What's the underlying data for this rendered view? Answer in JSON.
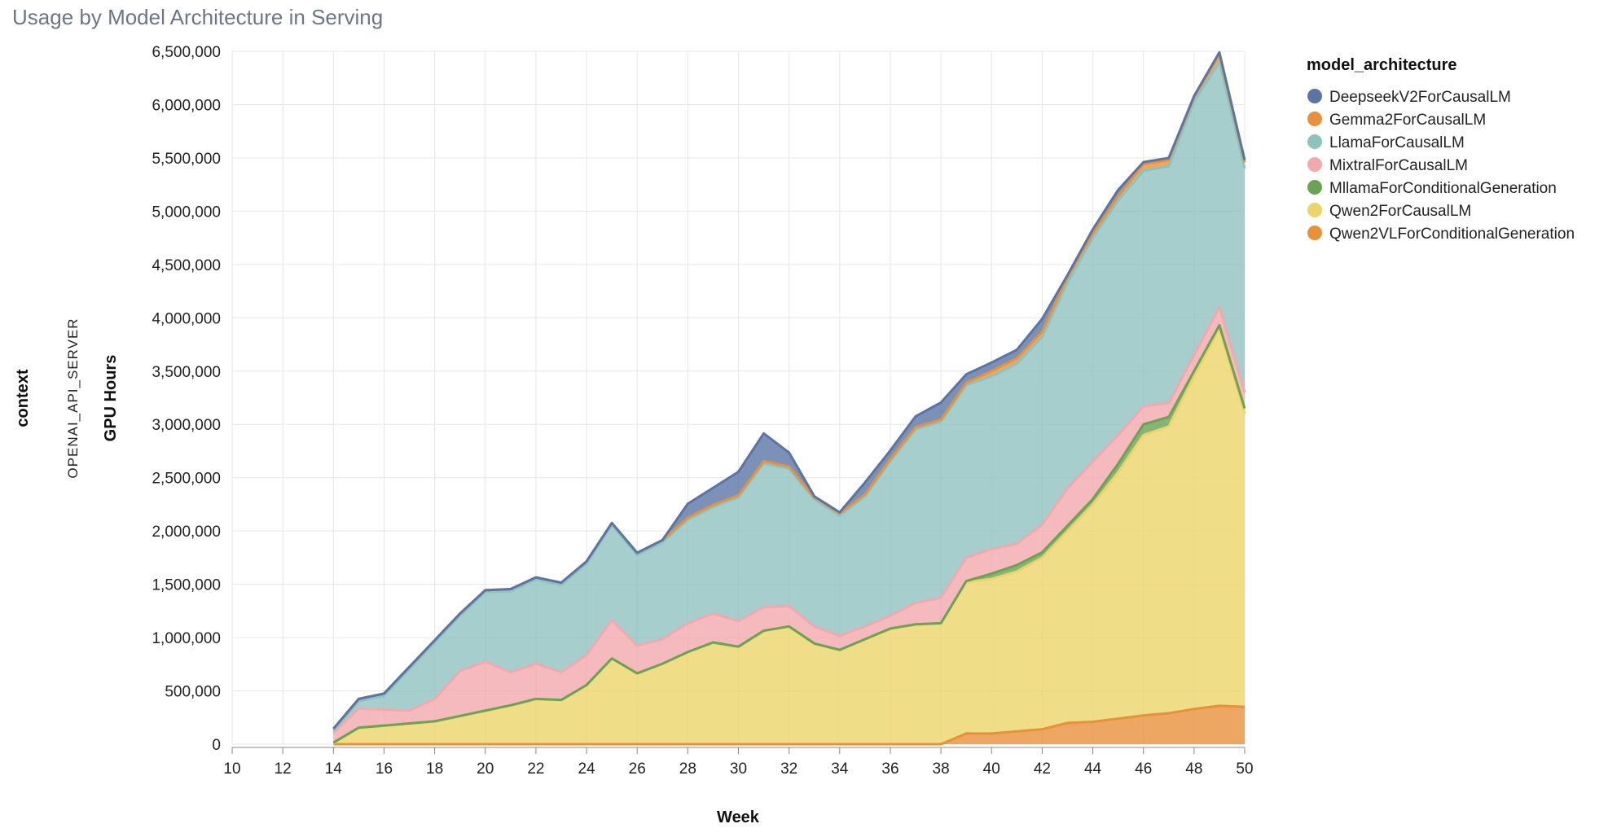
{
  "title": "Usage by Model Architecture in Serving",
  "chart_data": {
    "type": "area",
    "stacked": true,
    "title": "Usage by Model Architecture in Serving",
    "xlabel": "Week",
    "ylabel": "GPU Hours",
    "facet_label": "context",
    "facet_value": "OPENAI_API_SERVER",
    "xlim": [
      10,
      50
    ],
    "ylim": [
      0,
      6500000
    ],
    "x_ticks": [
      10,
      12,
      14,
      16,
      18,
      20,
      22,
      24,
      26,
      28,
      30,
      32,
      34,
      36,
      38,
      40,
      42,
      44,
      46,
      48,
      50
    ],
    "y_ticks": [
      0,
      500000,
      1000000,
      1500000,
      2000000,
      2500000,
      3000000,
      3500000,
      4000000,
      4500000,
      5000000,
      5500000,
      6000000,
      6500000
    ],
    "y_tick_labels": [
      "0",
      "500,000",
      "1,000,000",
      "1,500,000",
      "2,000,000",
      "2,500,000",
      "3,000,000",
      "3,500,000",
      "4,000,000",
      "4,500,000",
      "5,000,000",
      "5,500,000",
      "6,000,000",
      "6,500,000"
    ],
    "grid": true,
    "legend_title": "model_architecture",
    "legend_position": "right",
    "x": [
      14,
      15,
      16,
      17,
      18,
      19,
      20,
      21,
      22,
      23,
      24,
      25,
      26,
      27,
      28,
      29,
      30,
      31,
      32,
      33,
      34,
      35,
      36,
      37,
      38,
      39,
      40,
      41,
      42,
      43,
      44,
      45,
      46,
      47,
      48,
      49,
      50
    ],
    "series": [
      {
        "name": "DeepseekV2ForCausalLM",
        "color": "#5a75a5",
        "values": [
          0,
          0,
          0,
          0,
          0,
          0,
          0,
          0,
          0,
          0,
          0,
          0,
          0,
          0,
          130000,
          160000,
          220000,
          260000,
          130000,
          10000,
          10000,
          110000,
          80000,
          100000,
          160000,
          80000,
          80000,
          80000,
          120000,
          20000,
          40000,
          60000,
          20000,
          20000,
          10000,
          20000,
          20000
        ]
      },
      {
        "name": "Gemma2ForCausalLM",
        "color": "#e8913b",
        "values": [
          20000,
          20000,
          20000,
          20000,
          20000,
          20000,
          20000,
          20000,
          20000,
          20000,
          20000,
          20000,
          20000,
          20000,
          20000,
          20000,
          20000,
          20000,
          20000,
          20000,
          20000,
          20000,
          20000,
          20000,
          20000,
          20000,
          50000,
          50000,
          50000,
          50000,
          40000,
          40000,
          60000,
          60000,
          40000,
          70000,
          60000
        ]
      },
      {
        "name": "LlamaForCausalLM",
        "color": "#8ec2bf",
        "values": [
          20000,
          70000,
          130000,
          390000,
          530000,
          520000,
          650000,
          760000,
          790000,
          820000,
          860000,
          890000,
          850000,
          910000,
          970000,
          1000000,
          1160000,
          1350000,
          1290000,
          1190000,
          1130000,
          1220000,
          1450000,
          1630000,
          1650000,
          1620000,
          1620000,
          1690000,
          1760000,
          1930000,
          2100000,
          2200000,
          2210000,
          2220000,
          2380000,
          2300000,
          2100000
        ]
      },
      {
        "name": "MixtralForCausalLM",
        "color": "#f2a9ae",
        "values": [
          90000,
          180000,
          150000,
          120000,
          210000,
          420000,
          460000,
          310000,
          330000,
          260000,
          280000,
          360000,
          260000,
          230000,
          270000,
          270000,
          240000,
          220000,
          190000,
          160000,
          130000,
          120000,
          120000,
          200000,
          240000,
          220000,
          230000,
          200000,
          260000,
          350000,
          350000,
          270000,
          170000,
          130000,
          150000,
          170000,
          150000
        ]
      },
      {
        "name": "MllamaForConditionalGeneration",
        "color": "#6aa352",
        "values": [
          5000,
          5000,
          5000,
          5000,
          5000,
          5000,
          5000,
          5000,
          5000,
          5000,
          5000,
          5000,
          5000,
          5000,
          5000,
          5000,
          5000,
          5000,
          5000,
          5000,
          5000,
          5000,
          5000,
          5000,
          5000,
          10000,
          50000,
          60000,
          50000,
          50000,
          50000,
          80000,
          100000,
          90000,
          50000,
          30000,
          50000
        ]
      },
      {
        "name": "Qwen2ForCausalLM",
        "color": "#ecd46a",
        "values": [
          10000,
          150000,
          170000,
          190000,
          210000,
          260000,
          310000,
          360000,
          420000,
          410000,
          550000,
          800000,
          660000,
          750000,
          860000,
          950000,
          910000,
          1060000,
          1100000,
          940000,
          880000,
          980000,
          1080000,
          1120000,
          1130000,
          1420000,
          1450000,
          1500000,
          1610000,
          1800000,
          2040000,
          2310000,
          2630000,
          2690000,
          3120000,
          3540000,
          2750000
        ]
      },
      {
        "name": "Qwen2VLForConditionalGeneration",
        "color": "#e8913b",
        "values": [
          0,
          0,
          0,
          0,
          0,
          0,
          0,
          0,
          0,
          0,
          0,
          0,
          0,
          0,
          0,
          0,
          0,
          0,
          0,
          0,
          0,
          0,
          0,
          0,
          0,
          100000,
          100000,
          120000,
          140000,
          200000,
          210000,
          240000,
          270000,
          290000,
          330000,
          360000,
          350000
        ]
      }
    ]
  }
}
